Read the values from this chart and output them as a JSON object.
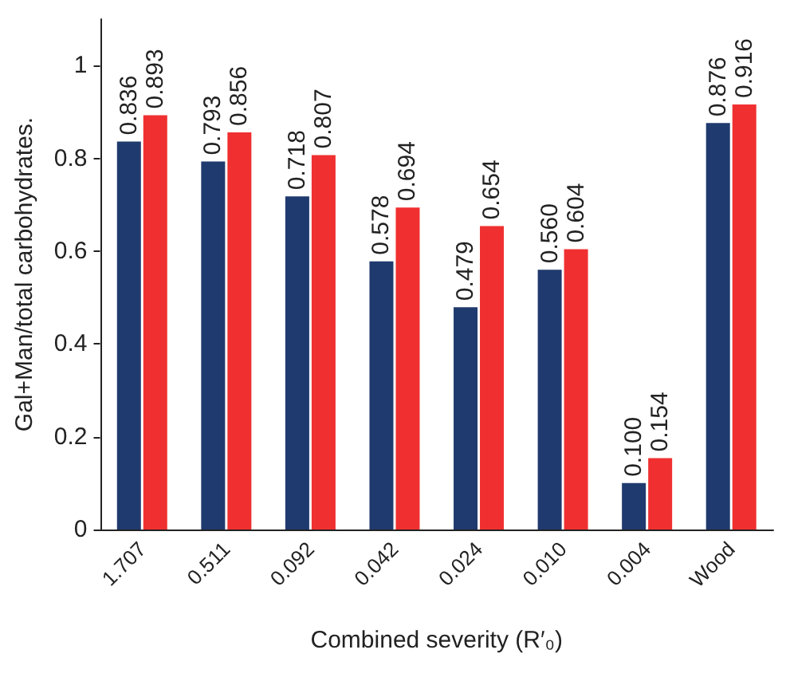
{
  "chart_data": {
    "type": "bar",
    "xlabel": "Combined severity (R′₀)",
    "ylabel": "Gal+Man/total carbohydrates.",
    "categories": [
      "1.707",
      "0.511",
      "0.092",
      "0.042",
      "0.024",
      "0.010",
      "0.004",
      "Wood"
    ],
    "series": [
      {
        "color": "#1f3a6e",
        "values": [
          0.836,
          0.793,
          0.718,
          0.578,
          0.479,
          0.56,
          0.1,
          0.876
        ],
        "value_labels": [
          "0.836",
          "0.793",
          "0.718",
          "0.578",
          "0.479",
          "0.560",
          "0.100",
          "0.876"
        ]
      },
      {
        "color": "#f03030",
        "values": [
          0.893,
          0.856,
          0.807,
          0.694,
          0.654,
          0.604,
          0.154,
          0.916
        ],
        "value_labels": [
          "0.893",
          "0.856",
          "0.807",
          "0.694",
          "0.654",
          "0.604",
          "0.154",
          "0.916"
        ]
      }
    ],
    "ylim": [
      0,
      1.1
    ],
    "yticks": [
      0,
      0.2,
      0.4,
      0.6,
      0.8,
      1
    ],
    "grid": false
  }
}
